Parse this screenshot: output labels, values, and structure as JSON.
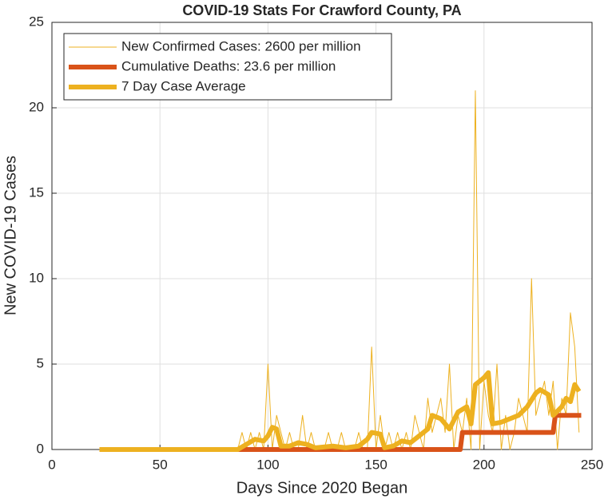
{
  "chart_data": {
    "type": "line",
    "title": "COVID-19 Stats For Crawford County, PA",
    "xlabel": "Days Since 2020 Began",
    "ylabel": "New COVID-19 Cases",
    "xlim": [
      0,
      250
    ],
    "xticks": [
      0,
      50,
      100,
      150,
      200,
      250
    ],
    "ylim": [
      0,
      25
    ],
    "yticks": [
      0,
      5,
      10,
      15,
      20,
      25
    ],
    "grid": true,
    "legend": "upper left",
    "series": [
      {
        "name": "New Confirmed Cases: 2600 per million",
        "color": "#EDB120",
        "width": 1,
        "x": [
          22,
          86,
          88,
          90,
          92,
          94,
          96,
          98,
          100,
          102,
          104,
          106,
          108,
          110,
          112,
          114,
          116,
          118,
          120,
          122,
          124,
          126,
          128,
          130,
          132,
          134,
          136,
          138,
          140,
          142,
          144,
          146,
          148,
          150,
          152,
          154,
          156,
          158,
          160,
          162,
          164,
          166,
          168,
          170,
          172,
          174,
          176,
          178,
          180,
          182,
          184,
          186,
          188,
          190,
          192,
          194,
          196,
          198,
          200,
          202,
          204,
          206,
          208,
          210,
          212,
          214,
          216,
          218,
          220,
          222,
          224,
          226,
          228,
          230,
          232,
          234,
          236,
          238,
          240,
          242,
          244
        ],
        "values": [
          0,
          0,
          1,
          0,
          1,
          0,
          1,
          0,
          5,
          0,
          2,
          1,
          0,
          1,
          0,
          0,
          2,
          0,
          1,
          0,
          0,
          0,
          1,
          0,
          0,
          1,
          0,
          0,
          0,
          1,
          0,
          0,
          6,
          0,
          2,
          0,
          1,
          0,
          1,
          0,
          1,
          0,
          2,
          1,
          0,
          3,
          1,
          2,
          3,
          1,
          5,
          0,
          2,
          1,
          3,
          0,
          21,
          0,
          4,
          2,
          1,
          5,
          0,
          2,
          0,
          1,
          3,
          2,
          1,
          10,
          2,
          3,
          4,
          2,
          4,
          0,
          3,
          2,
          8,
          6,
          1
        ]
      },
      {
        "name": "Cumulative Deaths: 23.6 per million",
        "color": "#D95319",
        "width": 6,
        "x": [
          22,
          189,
          190,
          232,
          233,
          245
        ],
        "values": [
          0,
          0,
          1,
          1,
          2,
          2
        ]
      },
      {
        "name": "7 Day Case Average",
        "color": "#EDB120",
        "width": 6,
        "x": [
          22,
          86,
          90,
          94,
          98,
          100,
          102,
          104,
          106,
          110,
          114,
          118,
          122,
          130,
          136,
          142,
          146,
          148,
          152,
          154,
          158,
          162,
          166,
          170,
          174,
          176,
          180,
          184,
          188,
          192,
          194,
          196,
          200,
          202,
          204,
          208,
          212,
          216,
          220,
          224,
          226,
          230,
          232,
          236,
          238,
          240,
          242,
          244
        ],
        "values": [
          0,
          0,
          0.3,
          0.6,
          0.5,
          0.8,
          1.3,
          1.2,
          0.2,
          0.2,
          0.4,
          0.3,
          0.1,
          0.2,
          0.1,
          0.2,
          0.6,
          1.0,
          0.9,
          0.1,
          0.2,
          0.5,
          0.4,
          0.8,
          1.2,
          2.0,
          1.8,
          1.2,
          2.2,
          2.5,
          1.5,
          3.8,
          4.2,
          4.5,
          1.5,
          1.6,
          1.8,
          2.0,
          2.5,
          3.3,
          3.5,
          3.2,
          2.0,
          2.5,
          3.0,
          2.8,
          3.8,
          3.4
        ]
      }
    ]
  }
}
